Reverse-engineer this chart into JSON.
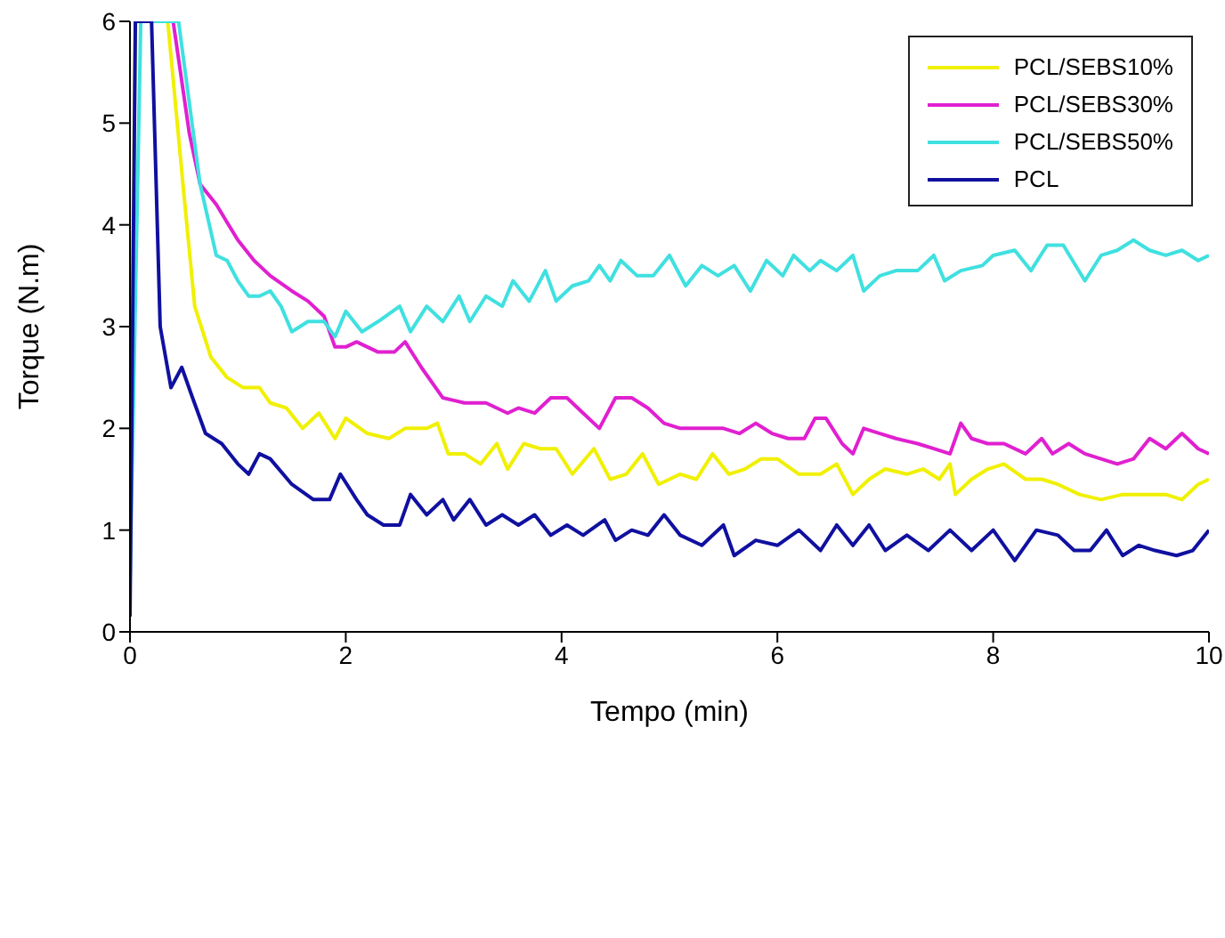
{
  "chart_data": {
    "type": "line",
    "xlabel": "Tempo (min)",
    "ylabel": "Torque (N.m)",
    "xlim": [
      0,
      10
    ],
    "xticks": [
      0,
      2,
      4,
      6,
      8,
      10
    ],
    "ylim": [
      0,
      6
    ],
    "yticks": [
      0,
      1,
      2,
      3,
      4,
      5,
      6
    ],
    "grid": false,
    "legend": "top right",
    "marker": "none",
    "line_style": "solid",
    "series": [
      {
        "name": "PCL/SEBS10%",
        "color": "#f0f000",
        "x": [
          0,
          0.05,
          0.35,
          0.5,
          0.6,
          0.75,
          0.9,
          1.05,
          1.2,
          1.3,
          1.45,
          1.6,
          1.75,
          1.9,
          2.0,
          2.2,
          2.4,
          2.55,
          2.75,
          2.85,
          2.95,
          3.1,
          3.25,
          3.4,
          3.5,
          3.65,
          3.8,
          3.95,
          4.1,
          4.3,
          4.45,
          4.6,
          4.75,
          4.9,
          5.1,
          5.25,
          5.4,
          5.55,
          5.7,
          5.85,
          6.0,
          6.2,
          6.4,
          6.55,
          6.7,
          6.85,
          7.0,
          7.2,
          7.35,
          7.5,
          7.6,
          7.65,
          7.8,
          7.95,
          8.1,
          8.3,
          8.45,
          8.6,
          8.8,
          9.0,
          9.2,
          9.4,
          9.6,
          9.75,
          9.9,
          10
        ],
        "values": [
          1.0,
          6,
          6,
          4.3,
          3.2,
          2.7,
          2.5,
          2.4,
          2.4,
          2.25,
          2.2,
          2.0,
          2.15,
          1.9,
          2.1,
          1.95,
          1.9,
          2.0,
          2.0,
          2.05,
          1.75,
          1.75,
          1.65,
          1.85,
          1.6,
          1.85,
          1.8,
          1.8,
          1.55,
          1.8,
          1.5,
          1.55,
          1.75,
          1.45,
          1.55,
          1.5,
          1.75,
          1.55,
          1.6,
          1.7,
          1.7,
          1.55,
          1.55,
          1.65,
          1.35,
          1.5,
          1.6,
          1.55,
          1.6,
          1.5,
          1.65,
          1.35,
          1.5,
          1.6,
          1.65,
          1.5,
          1.5,
          1.45,
          1.35,
          1.3,
          1.35,
          1.35,
          1.35,
          1.3,
          1.45,
          1.5
        ]
      },
      {
        "name": "PCL/SEBS30%",
        "color": "#e020d0",
        "x": [
          0.05,
          0.4,
          0.55,
          0.65,
          0.8,
          1.0,
          1.15,
          1.3,
          1.5,
          1.65,
          1.8,
          1.9,
          2.0,
          2.1,
          2.3,
          2.45,
          2.55,
          2.7,
          2.9,
          3.1,
          3.3,
          3.5,
          3.6,
          3.75,
          3.9,
          4.05,
          4.2,
          4.35,
          4.5,
          4.65,
          4.8,
          4.95,
          5.1,
          5.3,
          5.5,
          5.65,
          5.8,
          5.95,
          6.1,
          6.25,
          6.35,
          6.45,
          6.6,
          6.7,
          6.8,
          6.95,
          7.1,
          7.3,
          7.45,
          7.6,
          7.7,
          7.8,
          7.95,
          8.1,
          8.3,
          8.45,
          8.55,
          8.7,
          8.85,
          9.0,
          9.15,
          9.3,
          9.45,
          9.6,
          9.75,
          9.9,
          10
        ],
        "values": [
          6,
          6,
          4.9,
          4.4,
          4.2,
          3.85,
          3.65,
          3.5,
          3.35,
          3.25,
          3.1,
          2.8,
          2.8,
          2.85,
          2.75,
          2.75,
          2.85,
          2.6,
          2.3,
          2.25,
          2.25,
          2.15,
          2.2,
          2.15,
          2.3,
          2.3,
          2.15,
          2.0,
          2.3,
          2.3,
          2.2,
          2.05,
          2.0,
          2.0,
          2.0,
          1.95,
          2.05,
          1.95,
          1.9,
          1.9,
          2.1,
          2.1,
          1.85,
          1.75,
          2.0,
          1.95,
          1.9,
          1.85,
          1.8,
          1.75,
          2.05,
          1.9,
          1.85,
          1.85,
          1.75,
          1.9,
          1.75,
          1.85,
          1.75,
          1.7,
          1.65,
          1.7,
          1.9,
          1.8,
          1.95,
          1.8,
          1.75
        ]
      },
      {
        "name": "PCL/SEBS50%",
        "color": "#40e0e0",
        "x": [
          0,
          0.1,
          0.45,
          0.55,
          0.65,
          0.8,
          0.9,
          1.0,
          1.1,
          1.2,
          1.3,
          1.4,
          1.5,
          1.65,
          1.8,
          1.9,
          2.0,
          2.15,
          2.3,
          2.5,
          2.6,
          2.75,
          2.9,
          3.05,
          3.15,
          3.3,
          3.45,
          3.55,
          3.7,
          3.85,
          3.95,
          4.1,
          4.25,
          4.35,
          4.45,
          4.55,
          4.7,
          4.85,
          5.0,
          5.15,
          5.3,
          5.45,
          5.6,
          5.75,
          5.9,
          6.05,
          6.15,
          6.3,
          6.4,
          6.55,
          6.7,
          6.8,
          6.95,
          7.1,
          7.3,
          7.45,
          7.55,
          7.7,
          7.9,
          8.0,
          8.2,
          8.35,
          8.5,
          8.65,
          8.85,
          9.0,
          9.15,
          9.3,
          9.45,
          9.6,
          9.75,
          9.9,
          10
        ],
        "values": [
          0.5,
          6,
          6,
          5.2,
          4.4,
          3.7,
          3.65,
          3.45,
          3.3,
          3.3,
          3.35,
          3.2,
          2.95,
          3.05,
          3.05,
          2.9,
          3.15,
          2.95,
          3.05,
          3.2,
          2.95,
          3.2,
          3.05,
          3.3,
          3.05,
          3.3,
          3.2,
          3.45,
          3.25,
          3.55,
          3.25,
          3.4,
          3.45,
          3.6,
          3.45,
          3.65,
          3.5,
          3.5,
          3.7,
          3.4,
          3.6,
          3.5,
          3.6,
          3.35,
          3.65,
          3.5,
          3.7,
          3.55,
          3.65,
          3.55,
          3.7,
          3.35,
          3.5,
          3.55,
          3.55,
          3.7,
          3.45,
          3.55,
          3.6,
          3.7,
          3.75,
          3.55,
          3.8,
          3.8,
          3.45,
          3.7,
          3.75,
          3.85,
          3.75,
          3.7,
          3.75,
          3.65,
          3.7
        ]
      },
      {
        "name": "PCL",
        "color": "#1010a0",
        "x": [
          0,
          0.05,
          0.2,
          0.28,
          0.38,
          0.48,
          0.58,
          0.7,
          0.85,
          1.0,
          1.1,
          1.2,
          1.3,
          1.5,
          1.7,
          1.85,
          1.95,
          2.1,
          2.2,
          2.35,
          2.5,
          2.6,
          2.75,
          2.9,
          3.0,
          3.15,
          3.3,
          3.45,
          3.6,
          3.75,
          3.9,
          4.05,
          4.2,
          4.4,
          4.5,
          4.65,
          4.8,
          4.95,
          5.1,
          5.3,
          5.5,
          5.6,
          5.8,
          6.0,
          6.2,
          6.4,
          6.55,
          6.7,
          6.85,
          7.0,
          7.2,
          7.4,
          7.6,
          7.8,
          8.0,
          8.2,
          8.4,
          8.6,
          8.75,
          8.9,
          9.05,
          9.2,
          9.35,
          9.5,
          9.7,
          9.85,
          10
        ],
        "values": [
          0.15,
          6,
          6,
          3.0,
          2.4,
          2.6,
          2.3,
          1.95,
          1.85,
          1.65,
          1.55,
          1.75,
          1.7,
          1.45,
          1.3,
          1.3,
          1.55,
          1.3,
          1.15,
          1.05,
          1.05,
          1.35,
          1.15,
          1.3,
          1.1,
          1.3,
          1.05,
          1.15,
          1.05,
          1.15,
          0.95,
          1.05,
          0.95,
          1.1,
          0.9,
          1.0,
          0.95,
          1.15,
          0.95,
          0.85,
          1.05,
          0.75,
          0.9,
          0.85,
          1.0,
          0.8,
          1.05,
          0.85,
          1.05,
          0.8,
          0.95,
          0.8,
          1.0,
          0.8,
          1.0,
          0.7,
          1.0,
          0.95,
          0.8,
          0.8,
          1.0,
          0.75,
          0.85,
          0.8,
          0.75,
          0.8,
          1.0
        ]
      }
    ]
  }
}
